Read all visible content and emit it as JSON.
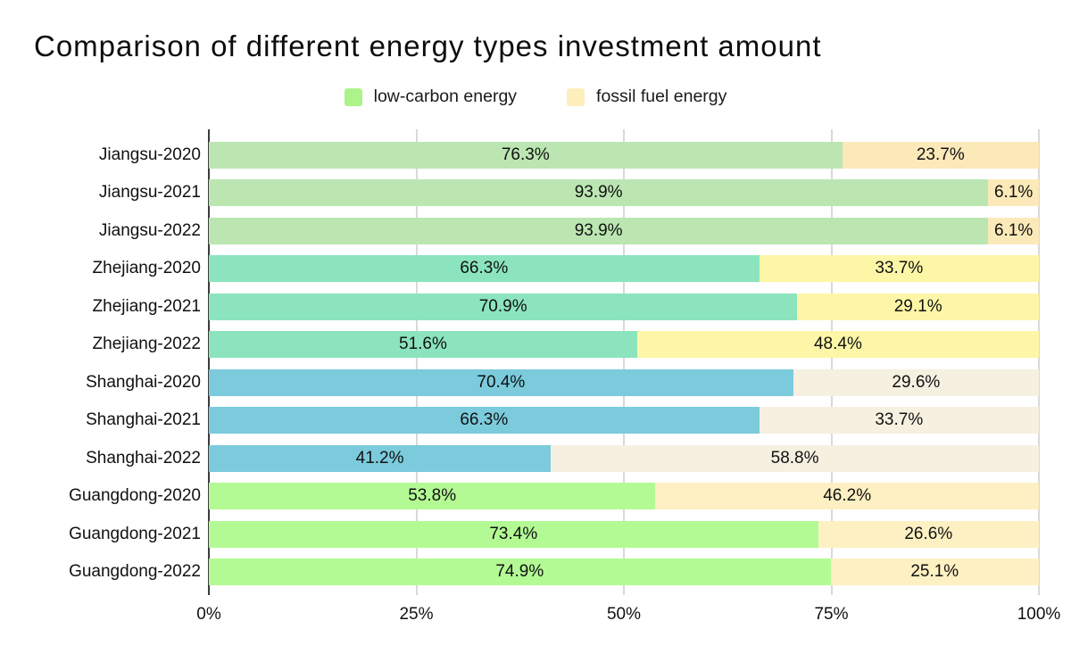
{
  "title": "Comparison of different energy types investment amount",
  "legend": {
    "items": [
      {
        "label": "low-carbon energy",
        "color": "#acf489"
      },
      {
        "label": "fossil fuel energy",
        "color": "#fdeebc"
      }
    ]
  },
  "chart_data": {
    "type": "bar",
    "orientation": "horizontal",
    "stacked": true,
    "title": "Comparison of different energy types investment amount",
    "categories": [
      "Jiangsu-2020",
      "Jiangsu-2021",
      "Jiangsu-2022",
      "Zhejiang-2020",
      "Zhejiang-2021",
      "Zhejiang-2022",
      "Shanghai-2020",
      "Shanghai-2021",
      "Shanghai-2022",
      "Guangdong-2020",
      "Guangdong-2021",
      "Guangdong-2022"
    ],
    "series": [
      {
        "name": "low-carbon energy",
        "values": [
          76.3,
          93.9,
          93.9,
          66.3,
          70.9,
          51.6,
          70.4,
          66.3,
          41.2,
          53.8,
          73.4,
          74.9
        ]
      },
      {
        "name": "fossil fuel energy",
        "values": [
          23.7,
          6.1,
          6.1,
          33.7,
          29.1,
          48.4,
          29.6,
          33.7,
          58.8,
          46.2,
          26.6,
          25.1
        ]
      }
    ],
    "row_colors": [
      {
        "low": "#bbe6b2",
        "fossil": "#fce9ba"
      },
      {
        "low": "#bbe6b2",
        "fossil": "#fce9ba"
      },
      {
        "low": "#bbe6b2",
        "fossil": "#fce9ba"
      },
      {
        "low": "#8be4bd",
        "fossil": "#fdf6a7"
      },
      {
        "low": "#8be4bd",
        "fossil": "#fdf6a7"
      },
      {
        "low": "#8be4bd",
        "fossil": "#fdf6a7"
      },
      {
        "low": "#7bcbdc",
        "fossil": "#f6f0e1"
      },
      {
        "low": "#7bcbdc",
        "fossil": "#f6f0e1"
      },
      {
        "low": "#7bcbdc",
        "fossil": "#f6f0e1"
      },
      {
        "low": "#b3fa94",
        "fossil": "#fdf0c2"
      },
      {
        "low": "#b3fa94",
        "fossil": "#fdf0c2"
      },
      {
        "low": "#b3fa94",
        "fossil": "#fdf0c2"
      }
    ],
    "xticks": [
      "0%",
      "25%",
      "50%",
      "75%",
      "100%"
    ],
    "xlim": [
      0,
      100
    ],
    "value_suffix": "%",
    "grid": true,
    "legend_position": "top",
    "colors": {
      "grid": "#d9d9d9",
      "axis": "#3c3c3c",
      "text": "#111111"
    }
  }
}
